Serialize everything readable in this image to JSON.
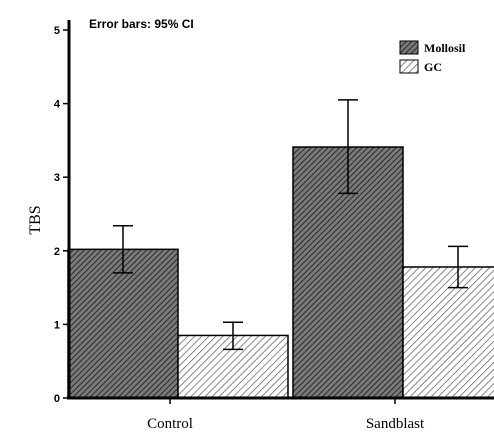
{
  "chart_data": {
    "type": "bar",
    "title": "",
    "annotation": "Error bars: 95% CI",
    "xlabel": "",
    "ylabel": "TBS",
    "ylim": [
      0,
      5
    ],
    "yticks": [
      "0",
      "1",
      "2",
      "3",
      "4",
      "5"
    ],
    "categories": [
      "Control",
      "Sandblast"
    ],
    "series": [
      {
        "name": "Mollosil",
        "pattern": "dense-diagonal-hatch",
        "color": "#555555",
        "values": [
          2.02,
          3.41
        ],
        "ci_low": [
          1.7,
          2.78
        ],
        "ci_high": [
          2.34,
          4.05
        ]
      },
      {
        "name": "GC",
        "pattern": "light-diagonal-hatch",
        "color": "#e8e8e8",
        "values": [
          0.85,
          1.78
        ],
        "ci_low": [
          0.66,
          1.5
        ],
        "ci_high": [
          1.03,
          2.06
        ]
      }
    ],
    "legend_position": "top-right",
    "grid": false
  }
}
